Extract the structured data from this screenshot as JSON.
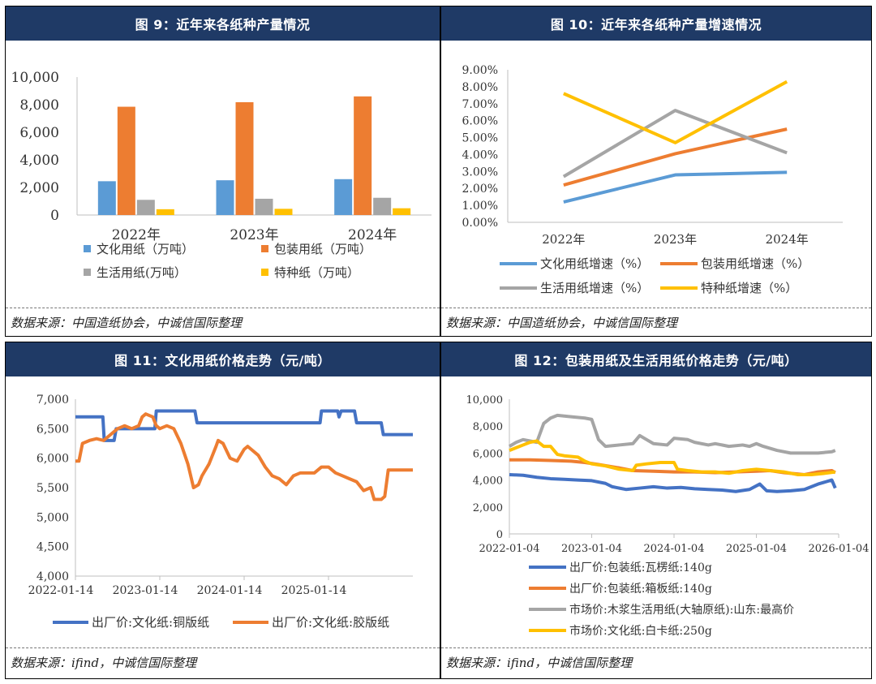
{
  "panels": [
    {
      "title": "图 9：近年来各纸种产量情况",
      "source": "数据来源：中国造纸协会，中诚信国际整理"
    },
    {
      "title": "图 10：近年来各纸种产量增速情况",
      "source": "数据来源：中国造纸协会，中诚信国际整理"
    },
    {
      "title": "图 11：文化用纸价格走势（元/吨）",
      "source": "数据来源：ifind，中诚信国际整理"
    },
    {
      "title": "图 12：包装用纸及生活用纸价格走势（元/吨）",
      "source": "数据来源：ifind，中诚信国际整理"
    }
  ],
  "chart_data": [
    {
      "type": "bar",
      "categories": [
        "2022年",
        "2023年",
        "2024年"
      ],
      "series": [
        {
          "name": "文化用纸（万吨）",
          "color": "#5b9bd5",
          "values": [
            2450,
            2520,
            2600
          ]
        },
        {
          "name": "包装用纸（万吨）",
          "color": "#ed7d31",
          "values": [
            7850,
            8180,
            8600
          ]
        },
        {
          "name": "生活用纸(万吨）",
          "color": "#a5a5a5",
          "values": [
            1100,
            1180,
            1250
          ]
        },
        {
          "name": "特种纸（万吨）",
          "color": "#ffc000",
          "values": [
            420,
            450,
            490
          ]
        }
      ],
      "ylim": [
        0,
        10000
      ],
      "yticks": [
        "0",
        "2,000",
        "4,000",
        "6,000",
        "8,000",
        "10,000"
      ]
    },
    {
      "type": "line",
      "categories": [
        "2022年",
        "2023年",
        "2024年"
      ],
      "series": [
        {
          "name": "文化用纸增速（%）",
          "color": "#5b9bd5",
          "values": [
            1.2,
            2.8,
            2.95
          ]
        },
        {
          "name": "包装用纸增速（%）",
          "color": "#ed7d31",
          "values": [
            2.2,
            4.05,
            5.5
          ]
        },
        {
          "name": "生活用纸增速（%）",
          "color": "#a5a5a5",
          "values": [
            2.7,
            6.6,
            4.1
          ]
        },
        {
          "name": "特种纸增速（%）",
          "color": "#ffc000",
          "values": [
            7.6,
            4.7,
            8.3
          ]
        }
      ],
      "ylim": [
        0,
        9
      ],
      "yticks": [
        "0.00%",
        "1.00%",
        "2.00%",
        "3.00%",
        "4.00%",
        "5.00%",
        "6.00%",
        "7.00%",
        "8.00%",
        "9.00%"
      ]
    },
    {
      "type": "line",
      "xticks": [
        "2022-01-14",
        "2023-01-14",
        "2024-01-14",
        "2025-01-14"
      ],
      "xrange": [
        0,
        48
      ],
      "xtick_pos": [
        0,
        12,
        24,
        36
      ],
      "ylim": [
        4000,
        7000
      ],
      "yticks": [
        "4,000",
        "4,500",
        "5,000",
        "5,500",
        "6,000",
        "6,500",
        "7,000"
      ],
      "series": [
        {
          "name": "出厂价:文化纸:铜版纸",
          "color": "#4472c4",
          "points": [
            [
              0,
              6700
            ],
            [
              3.9,
              6700
            ],
            [
              4.1,
              6300
            ],
            [
              5.5,
              6300
            ],
            [
              5.8,
              6500
            ],
            [
              11.3,
              6500
            ],
            [
              11.5,
              6800
            ],
            [
              17,
              6800
            ],
            [
              17.3,
              6600
            ],
            [
              34.8,
              6600
            ],
            [
              35,
              6800
            ],
            [
              37.3,
              6800
            ],
            [
              37.5,
              6700
            ],
            [
              37.8,
              6800
            ],
            [
              39.7,
              6800
            ],
            [
              40,
              6600
            ],
            [
              43.5,
              6600
            ],
            [
              43.8,
              6400
            ],
            [
              48,
              6400
            ]
          ]
        },
        {
          "name": "出厂价:文化纸:胶版纸",
          "color": "#ed7d31",
          "points": [
            [
              0,
              5950
            ],
            [
              0.5,
              5950
            ],
            [
              1,
              6250
            ],
            [
              2,
              6300
            ],
            [
              3,
              6330
            ],
            [
              4,
              6300
            ],
            [
              5,
              6400
            ],
            [
              6,
              6500
            ],
            [
              7,
              6550
            ],
            [
              8,
              6500
            ],
            [
              9,
              6550
            ],
            [
              9.5,
              6700
            ],
            [
              10,
              6750
            ],
            [
              11,
              6700
            ],
            [
              11.5,
              6550
            ],
            [
              12,
              6500
            ],
            [
              13,
              6550
            ],
            [
              14,
              6500
            ],
            [
              15,
              6250
            ],
            [
              16,
              5900
            ],
            [
              16.8,
              5500
            ],
            [
              17.5,
              5550
            ],
            [
              18,
              5700
            ],
            [
              19,
              5900
            ],
            [
              20,
              6200
            ],
            [
              20.3,
              6300
            ],
            [
              21,
              6250
            ],
            [
              22,
              6000
            ],
            [
              23,
              5950
            ],
            [
              24,
              6150
            ],
            [
              24.5,
              6200
            ],
            [
              25,
              6150
            ],
            [
              26,
              6050
            ],
            [
              27,
              5850
            ],
            [
              28,
              5700
            ],
            [
              29,
              5650
            ],
            [
              30,
              5550
            ],
            [
              31,
              5700
            ],
            [
              32,
              5750
            ],
            [
              33,
              5750
            ],
            [
              34,
              5750
            ],
            [
              35,
              5850
            ],
            [
              36,
              5850
            ],
            [
              37,
              5750
            ],
            [
              38,
              5700
            ],
            [
              39,
              5650
            ],
            [
              40,
              5600
            ],
            [
              41,
              5450
            ],
            [
              42,
              5500
            ],
            [
              42.5,
              5300
            ],
            [
              43.5,
              5300
            ],
            [
              44,
              5350
            ],
            [
              44.5,
              5800
            ],
            [
              45.5,
              5800
            ],
            [
              48,
              5800
            ]
          ]
        }
      ]
    },
    {
      "type": "line",
      "xticks": [
        "2022-01-04",
        "2023-01-04",
        "2024-01-04",
        "2025-01-04",
        "2026-01-04"
      ],
      "xrange": [
        0,
        48
      ],
      "xtick_pos": [
        0,
        12,
        24,
        36,
        48
      ],
      "ylim": [
        0,
        10000
      ],
      "yticks": [
        "0",
        "2,000",
        "4,000",
        "6,000",
        "8,000",
        "10,000"
      ],
      "series": [
        {
          "name": "出厂价:包装纸:瓦楞纸:140g",
          "color": "#4472c4",
          "points": [
            [
              0,
              4400
            ],
            [
              2,
              4350
            ],
            [
              4,
              4200
            ],
            [
              6,
              4100
            ],
            [
              8,
              4050
            ],
            [
              10,
              4000
            ],
            [
              12,
              3950
            ],
            [
              14,
              3750
            ],
            [
              15,
              3500
            ],
            [
              17,
              3300
            ],
            [
              19,
              3400
            ],
            [
              21,
              3500
            ],
            [
              23,
              3400
            ],
            [
              25,
              3450
            ],
            [
              27,
              3350
            ],
            [
              29,
              3300
            ],
            [
              31,
              3250
            ],
            [
              33,
              3150
            ],
            [
              35,
              3300
            ],
            [
              36.5,
              3700
            ],
            [
              37.5,
              3200
            ],
            [
              39,
              3150
            ],
            [
              41,
              3200
            ],
            [
              43,
              3300
            ],
            [
              45,
              3700
            ],
            [
              47,
              4000
            ],
            [
              47.5,
              3400
            ]
          ]
        },
        {
          "name": "出厂价:包装纸:箱板纸:140g",
          "color": "#ed7d31",
          "points": [
            [
              0,
              5500
            ],
            [
              3,
              5500
            ],
            [
              6,
              5450
            ],
            [
              9,
              5400
            ],
            [
              11,
              5300
            ],
            [
              13,
              5150
            ],
            [
              16,
              4900
            ],
            [
              18,
              4700
            ],
            [
              21,
              4650
            ],
            [
              24,
              4600
            ],
            [
              27,
              4600
            ],
            [
              30,
              4550
            ],
            [
              33,
              4600
            ],
            [
              36,
              4650
            ],
            [
              38,
              4700
            ],
            [
              40,
              4550
            ],
            [
              43,
              4400
            ],
            [
              45,
              4600
            ],
            [
              47,
              4700
            ],
            [
              47.5,
              4550
            ]
          ]
        },
        {
          "name": "市场价:木浆生活用纸(大轴原纸):山东:最高价",
          "color": "#a5a5a5",
          "points": [
            [
              0,
              6500
            ],
            [
              1,
              6800
            ],
            [
              2,
              7000
            ],
            [
              4,
              6800
            ],
            [
              5,
              8200
            ],
            [
              6,
              8600
            ],
            [
              7,
              8800
            ],
            [
              9,
              8700
            ],
            [
              11,
              8600
            ],
            [
              12,
              8500
            ],
            [
              13,
              7000
            ],
            [
              14,
              6500
            ],
            [
              16,
              6600
            ],
            [
              18,
              6700
            ],
            [
              19,
              7300
            ],
            [
              20,
              7000
            ],
            [
              21,
              6700
            ],
            [
              23,
              6600
            ],
            [
              24,
              7100
            ],
            [
              26,
              7000
            ],
            [
              27,
              6800
            ],
            [
              29,
              6600
            ],
            [
              30,
              6700
            ],
            [
              32,
              6500
            ],
            [
              34,
              6600
            ],
            [
              35,
              6500
            ],
            [
              36,
              6700
            ],
            [
              37,
              6500
            ],
            [
              39,
              6200
            ],
            [
              41,
              6000
            ],
            [
              43,
              6000
            ],
            [
              45,
              6000
            ],
            [
              47,
              6100
            ],
            [
              47.5,
              6200
            ]
          ]
        },
        {
          "name": "市场价:文化纸:白卡纸:250g",
          "color": "#ffc000",
          "points": [
            [
              0,
              6200
            ],
            [
              2,
              6600
            ],
            [
              3,
              6800
            ],
            [
              4,
              6900
            ],
            [
              5,
              6500
            ],
            [
              6,
              6500
            ],
            [
              7,
              5900
            ],
            [
              8,
              5800
            ],
            [
              10,
              5700
            ],
            [
              11,
              5400
            ],
            [
              12,
              5200
            ],
            [
              14,
              5050
            ],
            [
              16,
              4800
            ],
            [
              18,
              4700
            ],
            [
              18.5,
              5100
            ],
            [
              20,
              5200
            ],
            [
              22,
              5300
            ],
            [
              24,
              5300
            ],
            [
              24.5,
              4800
            ],
            [
              26,
              4700
            ],
            [
              28,
              4600
            ],
            [
              30,
              4600
            ],
            [
              32,
              4500
            ],
            [
              34,
              4700
            ],
            [
              36,
              4800
            ],
            [
              38,
              4700
            ],
            [
              40,
              4600
            ],
            [
              42,
              4400
            ],
            [
              44,
              4400
            ],
            [
              46,
              4500
            ],
            [
              47.5,
              4600
            ]
          ]
        }
      ]
    }
  ]
}
